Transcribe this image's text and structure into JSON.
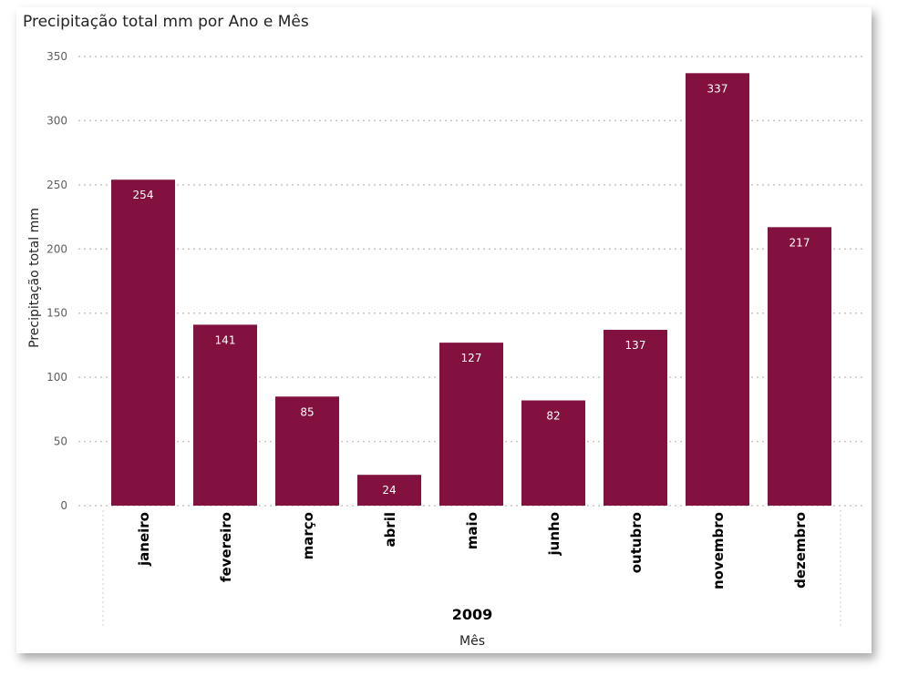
{
  "chart_data": {
    "type": "bar",
    "title": "Precipitação total mm por Ano e Mês",
    "xlabel": "Mês",
    "ylabel": "Precipitação total mm",
    "group_label": "2009",
    "categories": [
      "janeiro",
      "fevereiro",
      "março",
      "abril",
      "maio",
      "junho",
      "outubro",
      "novembro",
      "dezembro"
    ],
    "values": [
      254,
      141,
      85,
      24,
      127,
      82,
      137,
      337,
      217
    ],
    "data_labels": [
      "254",
      "141",
      "85",
      "24",
      "127",
      "82",
      "137",
      "337",
      "217"
    ],
    "yticks": [
      0,
      50,
      100,
      150,
      200,
      250,
      300,
      350
    ],
    "ylim": [
      0,
      350
    ],
    "grid": true,
    "bar_color": "#83113F"
  }
}
